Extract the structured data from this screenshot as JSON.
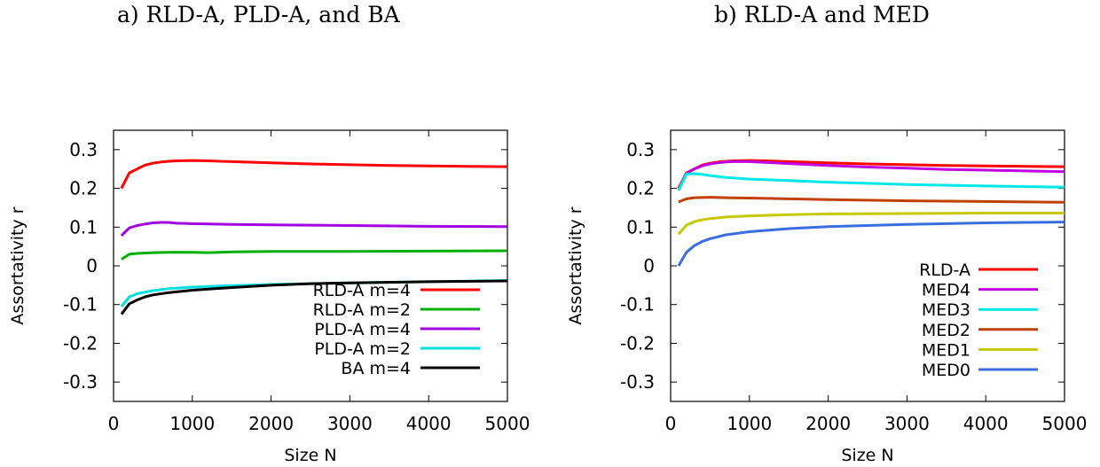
{
  "chart_data": [
    {
      "type": "line",
      "title": "a) RLD-A, PLD-A, and BA",
      "xlabel": "Size N",
      "ylabel": "Assortativity r",
      "xlim": [
        0,
        5000
      ],
      "ylim": [
        -0.35,
        0.35
      ],
      "xticks": [
        0,
        1000,
        2000,
        3000,
        4000,
        5000
      ],
      "yticks": [
        0.3,
        0.2,
        0.1,
        0,
        -0.1,
        -0.2,
        -0.3
      ],
      "grid": false,
      "legend_position": "bottom-right",
      "series": [
        {
          "name": "RLD-A m=4",
          "color": "#ff0000",
          "x": [
            100,
            200,
            300,
            400,
            500,
            600,
            700,
            800,
            1000,
            1200,
            1500,
            2000,
            2500,
            3000,
            3500,
            4000,
            4500,
            5000
          ],
          "y": [
            0.2,
            0.24,
            0.25,
            0.26,
            0.265,
            0.268,
            0.27,
            0.271,
            0.272,
            0.271,
            0.269,
            0.266,
            0.263,
            0.261,
            0.259,
            0.258,
            0.257,
            0.256
          ]
        },
        {
          "name": "RLD-A m=2",
          "color": "#00b000",
          "x": [
            100,
            200,
            300,
            500,
            700,
            1000,
            1200,
            1500,
            2000,
            3000,
            4000,
            5000
          ],
          "y": [
            0.017,
            0.03,
            0.032,
            0.034,
            0.035,
            0.035,
            0.034,
            0.036,
            0.037,
            0.037,
            0.038,
            0.039
          ]
        },
        {
          "name": "PLD-A m=4",
          "color": "#a000e0",
          "x": [
            100,
            200,
            300,
            400,
            500,
            600,
            700,
            800,
            1000,
            1500,
            2000,
            3000,
            4000,
            5000
          ],
          "y": [
            0.078,
            0.098,
            0.104,
            0.108,
            0.111,
            0.112,
            0.112,
            0.11,
            0.109,
            0.107,
            0.106,
            0.104,
            0.102,
            0.101
          ]
        },
        {
          "name": "PLD-A m=2",
          "color": "#00e0e0",
          "x": [
            100,
            200,
            300,
            500,
            700,
            1000,
            1500,
            2000,
            2500,
            3000,
            4000,
            5000
          ],
          "y": [
            -0.105,
            -0.08,
            -0.072,
            -0.064,
            -0.059,
            -0.055,
            -0.051,
            -0.048,
            -0.046,
            -0.044,
            -0.041,
            -0.038
          ]
        },
        {
          "name": "BA m=4",
          "color": "#000000",
          "x": [
            100,
            200,
            300,
            400,
            500,
            700,
            1000,
            1500,
            2000,
            2500,
            3000,
            4000,
            5000
          ],
          "y": [
            -0.125,
            -0.098,
            -0.088,
            -0.08,
            -0.075,
            -0.069,
            -0.063,
            -0.056,
            -0.05,
            -0.046,
            -0.044,
            -0.041,
            -0.039
          ]
        }
      ]
    },
    {
      "type": "line",
      "title": "b) RLD-A and MED",
      "xlabel": "Size N",
      "ylabel": "Assortativity r",
      "xlim": [
        0,
        5000
      ],
      "ylim": [
        -0.35,
        0.35
      ],
      "xticks": [
        0,
        1000,
        2000,
        3000,
        4000,
        5000
      ],
      "yticks": [
        0.3,
        0.2,
        0.1,
        0,
        -0.1,
        -0.2,
        -0.3
      ],
      "grid": false,
      "legend_position": "bottom-right",
      "series": [
        {
          "name": "RLD-A",
          "color": "#ff0000",
          "x": [
            100,
            200,
            300,
            400,
            500,
            600,
            700,
            800,
            1000,
            1200,
            1500,
            2000,
            2500,
            3000,
            3500,
            4000,
            4500,
            5000
          ],
          "y": [
            0.2,
            0.24,
            0.25,
            0.26,
            0.265,
            0.268,
            0.27,
            0.271,
            0.272,
            0.271,
            0.269,
            0.266,
            0.263,
            0.261,
            0.259,
            0.258,
            0.257,
            0.256
          ]
        },
        {
          "name": "MED4",
          "color": "#c000e0",
          "x": [
            100,
            200,
            300,
            400,
            500,
            600,
            700,
            800,
            1000,
            1200,
            1500,
            2000,
            2500,
            3000,
            3500,
            4000,
            4500,
            5000
          ],
          "y": [
            0.195,
            0.238,
            0.25,
            0.258,
            0.263,
            0.266,
            0.268,
            0.269,
            0.269,
            0.267,
            0.264,
            0.259,
            0.255,
            0.252,
            0.249,
            0.247,
            0.245,
            0.243
          ]
        },
        {
          "name": "MED3",
          "color": "#00e8e8",
          "x": [
            100,
            200,
            300,
            400,
            500,
            700,
            1000,
            1500,
            2000,
            2500,
            3000,
            4000,
            5000
          ],
          "y": [
            0.195,
            0.237,
            0.238,
            0.236,
            0.233,
            0.228,
            0.224,
            0.22,
            0.216,
            0.213,
            0.21,
            0.206,
            0.203
          ]
        },
        {
          "name": "MED2",
          "color": "#c04000",
          "x": [
            100,
            200,
            300,
            500,
            700,
            1000,
            1500,
            2000,
            3000,
            4000,
            5000
          ],
          "y": [
            0.165,
            0.173,
            0.176,
            0.177,
            0.176,
            0.175,
            0.173,
            0.171,
            0.168,
            0.166,
            0.164
          ]
        },
        {
          "name": "MED1",
          "color": "#c8c800",
          "x": [
            100,
            200,
            300,
            400,
            500,
            700,
            1000,
            1500,
            2000,
            3000,
            4000,
            5000
          ],
          "y": [
            0.082,
            0.105,
            0.114,
            0.119,
            0.122,
            0.126,
            0.129,
            0.132,
            0.134,
            0.135,
            0.136,
            0.136
          ]
        },
        {
          "name": "MED0",
          "color": "#3a6ee0",
          "x": [
            100,
            200,
            300,
            400,
            500,
            700,
            1000,
            1500,
            2000,
            3000,
            4000,
            5000
          ],
          "y": [
            0.0,
            0.035,
            0.052,
            0.063,
            0.07,
            0.08,
            0.088,
            0.096,
            0.101,
            0.107,
            0.111,
            0.113
          ]
        }
      ]
    }
  ]
}
